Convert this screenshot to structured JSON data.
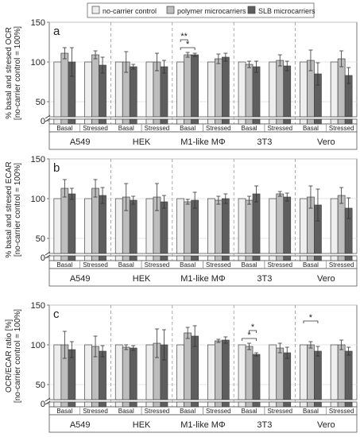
{
  "legend": [
    {
      "label": "no-carrier control",
      "color": "#eeeeee"
    },
    {
      "label": "polymer microcarriers",
      "color": "#bdbdbd"
    },
    {
      "label": "SLB microcarriers",
      "color": "#5e5e5e"
    }
  ],
  "group_labels": [
    "A549",
    "HEK",
    "M1-like MΦ",
    "3T3",
    "Vero"
  ],
  "condition_labels": [
    "Basal",
    "Stressed"
  ],
  "colors": {
    "control": "#eeeeee",
    "polymer": "#bdbdbd",
    "slb": "#5e5e5e",
    "stroke": "#444444"
  },
  "chart_data": [
    {
      "type": "bar",
      "panel_letter": "a",
      "ylabel_line1": "% basal and stresed OCR",
      "ylabel_line2": "[no-carrier control = 100%]",
      "ylim": [
        0,
        150
      ],
      "yticks": [
        "0",
        "50",
        "100",
        "150"
      ],
      "axis_break": true,
      "grid": true,
      "categories": [
        "A549 Basal",
        "A549 Stressed",
        "HEK Basal",
        "HEK Stressed",
        "M1-like MΦ Basal",
        "M1-like MΦ Stressed",
        "3T3 Basal",
        "3T3 Stressed",
        "Vero Basal",
        "Vero Stressed"
      ],
      "series": [
        {
          "name": "no-carrier control",
          "values": [
            100,
            100,
            100,
            100,
            100,
            100,
            100,
            100,
            100,
            100
          ],
          "errors": [
            0,
            0,
            0,
            0,
            0,
            0,
            0,
            0,
            0,
            0
          ]
        },
        {
          "name": "polymer microcarriers",
          "values": [
            111,
            109,
            100,
            100,
            109,
            104,
            97,
            102,
            102,
            104
          ],
          "errors": [
            7,
            5,
            13,
            11,
            3,
            6,
            4,
            7,
            13,
            10
          ]
        },
        {
          "name": "SLB microcarriers",
          "values": [
            100,
            96,
            94,
            94,
            109,
            106,
            94,
            95,
            85,
            83
          ],
          "errors": [
            18,
            10,
            3,
            8,
            2,
            5,
            7,
            6,
            14,
            10
          ]
        }
      ],
      "annotations": [
        {
          "text": "*",
          "category": "M1-like MΦ Basal",
          "from": "no-carrier control",
          "to": "SLB microcarriers"
        },
        {
          "text": "**",
          "category": "M1-like MΦ Basal",
          "from": "no-carrier control",
          "to": "polymer microcarriers"
        }
      ]
    },
    {
      "type": "bar",
      "panel_letter": "b",
      "ylabel_line1": "% basal and stresed ECAR",
      "ylabel_line2": "[no-carrier control = 100%]",
      "ylim": [
        0,
        150
      ],
      "yticks": [
        "0",
        "50",
        "100",
        "150"
      ],
      "axis_break": true,
      "grid": true,
      "categories": [
        "A549 Basal",
        "A549 Stressed",
        "HEK Basal",
        "HEK Stressed",
        "M1-like MΦ Basal",
        "M1-like MΦ Stressed",
        "3T3 Basal",
        "3T3 Stressed",
        "Vero Basal",
        "Vero Stressed"
      ],
      "series": [
        {
          "name": "no-carrier control",
          "values": [
            100,
            100,
            100,
            100,
            100,
            100,
            100,
            100,
            100,
            100
          ],
          "errors": [
            0,
            0,
            0,
            0,
            0,
            0,
            0,
            0,
            0,
            0
          ]
        },
        {
          "name": "polymer microcarriers",
          "values": [
            113,
            113,
            102,
            102,
            96,
            98,
            98,
            106,
            102,
            104
          ],
          "errors": [
            11,
            11,
            17,
            17,
            3,
            5,
            5,
            3,
            14,
            10
          ]
        },
        {
          "name": "SLB microcarriers",
          "values": [
            106,
            104,
            98,
            96,
            98,
            100,
            106,
            102,
            92,
            88
          ],
          "errors": [
            7,
            10,
            5,
            8,
            10,
            6,
            10,
            5,
            20,
            13
          ]
        }
      ],
      "annotations": []
    },
    {
      "type": "bar",
      "panel_letter": "c",
      "ylabel_line1": "OCR/ECAR ratio [%]",
      "ylabel_line2": "[no-carrier control = 100%]",
      "ylim": [
        0,
        150
      ],
      "yticks": [
        "0",
        "50",
        "100",
        "150"
      ],
      "axis_break": true,
      "grid": true,
      "categories": [
        "A549 Basal",
        "A549 Stressed",
        "HEK Basal",
        "HEK Stressed",
        "M1-like MΦ Basal",
        "M1-like MΦ Stressed",
        "3T3 Basal",
        "3T3 Stressed",
        "Vero Basal",
        "Vero Stressed"
      ],
      "series": [
        {
          "name": "no-carrier control",
          "values": [
            100,
            100,
            100,
            100,
            100,
            100,
            100,
            100,
            100,
            100
          ],
          "errors": [
            0,
            0,
            0,
            0,
            0,
            0,
            0,
            0,
            0,
            0
          ]
        },
        {
          "name": "polymer microcarriers",
          "values": [
            100,
            98,
            97,
            102,
            115,
            105,
            98,
            96,
            100,
            100
          ],
          "errors": [
            17,
            13,
            3,
            18,
            7,
            2,
            4,
            6,
            4,
            6
          ]
        },
        {
          "name": "SLB microcarriers",
          "values": [
            94,
            92,
            96,
            100,
            111,
            106,
            88,
            90,
            92,
            92
          ],
          "errors": [
            10,
            7,
            3,
            19,
            13,
            4,
            2,
            7,
            6,
            5
          ]
        }
      ],
      "annotations": [
        {
          "text": "*",
          "category": "3T3 Basal",
          "from": "no-carrier control",
          "to": "SLB microcarriers"
        },
        {
          "text": "*",
          "category": "3T3 Basal",
          "from": "polymer microcarriers",
          "to": "SLB microcarriers"
        },
        {
          "text": "*",
          "category": "Vero Basal",
          "from": "no-carrier control",
          "to": "SLB microcarriers"
        }
      ]
    }
  ]
}
